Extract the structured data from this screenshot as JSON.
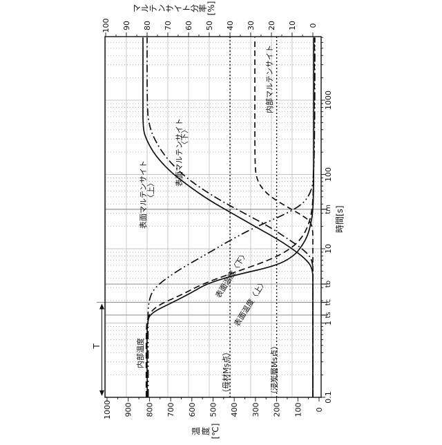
{
  "figure": {
    "background": "#ffffff",
    "ink": "#111111",
    "grid_major_color": "#b3b3b3",
    "grid_minor_color": "#9c9c9c",
    "special_line_color": "#7a7a7a",
    "title_top": "マルテンサイト分率[%]",
    "title_bottom": "温度[℃]",
    "title_right": "時間[s]"
  },
  "chart_data": {
    "type": "line",
    "rotated": "original landscape chart rotated 90deg counterclockwise; time axis points up, temperature axis along bottom (1000 left, 0 right), martensite fraction along top (100 left, 0 right)",
    "axes": {
      "time": {
        "label": "時間[s]",
        "scale": "log",
        "min": 0.1,
        "max": 7000,
        "decade_ticks": [
          {
            "t": 0.1,
            "label": "0.1"
          },
          {
            "t": 1,
            "label": "1"
          },
          {
            "t": 10,
            "label": "10"
          },
          {
            "t": 100,
            "label": "100"
          },
          {
            "t": 1000,
            "label": "1000"
          }
        ],
        "special_ticks": [
          {
            "t": 1.28,
            "label": "ts"
          },
          {
            "t": 1.9,
            "label": "tc"
          },
          {
            "t": 3.35,
            "label": "tb"
          },
          {
            "t": 34,
            "label": "tm"
          }
        ]
      },
      "temperature": {
        "label": "温度[℃]",
        "min": 0,
        "max": 1000,
        "ticks": [
          {
            "v": 1000,
            "label": "1000"
          },
          {
            "v": 900,
            "label": "900"
          },
          {
            "v": 800,
            "label": "800"
          },
          {
            "v": 700,
            "label": "700"
          },
          {
            "v": 600,
            "label": "600"
          },
          {
            "v": 500,
            "label": "500"
          },
          {
            "v": 400,
            "label": "400"
          },
          {
            "v": 300,
            "label": "300"
          },
          {
            "v": 200,
            "label": "200"
          },
          {
            "v": 100,
            "label": "100"
          },
          {
            "v": 0,
            "label": "0"
          }
        ]
      },
      "martensite": {
        "label": "マルテンサイト分率[%]",
        "min": 0,
        "max": 100,
        "ticks": [
          {
            "v": 100,
            "label": "100"
          },
          {
            "v": 90,
            "label": "90"
          },
          {
            "v": 80,
            "label": "80"
          },
          {
            "v": 70,
            "label": "70"
          },
          {
            "v": 60,
            "label": "60"
          },
          {
            "v": 50,
            "label": "50"
          },
          {
            "v": 40,
            "label": "40"
          },
          {
            "v": 30,
            "label": "30"
          },
          {
            "v": 20,
            "label": "20"
          },
          {
            "v": 10,
            "label": "10"
          },
          {
            "v": 0,
            "label": "0"
          }
        ]
      }
    },
    "reference_lines": [
      {
        "id": "base_ms",
        "label": "（母材Ms点）",
        "temperature": 420
      },
      {
        "id": "carb_ms",
        "label": "（浸炭層Ms点）",
        "temperature": 200
      }
    ],
    "series": [
      {
        "id": "surface_temp_lower",
        "label": "表面温度〈下〉",
        "label_lines": [
          "表面温度〈下〉"
        ],
        "axis": "temperature",
        "style": "solid",
        "points": [
          [
            0.1,
            810
          ],
          [
            0.5,
            812
          ],
          [
            1.0,
            810
          ],
          [
            1.35,
            797
          ],
          [
            1.9,
            690
          ],
          [
            2.6,
            598
          ],
          [
            3.4,
            528
          ],
          [
            4.4,
            400
          ],
          [
            5.9,
            202
          ],
          [
            8,
            118
          ],
          [
            11,
            80
          ],
          [
            15,
            54
          ],
          [
            22,
            38
          ],
          [
            34,
            28
          ],
          [
            100,
            25
          ],
          [
            1000,
            25
          ],
          [
            7000,
            25
          ]
        ]
      },
      {
        "id": "surface_temp_upper",
        "label": "表面温度〈上〉",
        "label_lines": [
          "表面温度〈上〉"
        ],
        "axis": "temperature",
        "style": "dashed",
        "points": [
          [
            0.1,
            815
          ],
          [
            0.6,
            816
          ],
          [
            1.2,
            812
          ],
          [
            1.7,
            768
          ],
          [
            2.4,
            648
          ],
          [
            3.3,
            556
          ],
          [
            4.6,
            420
          ],
          [
            7,
            235
          ],
          [
            10,
            132
          ],
          [
            15,
            72
          ],
          [
            25,
            40
          ],
          [
            50,
            26
          ],
          [
            1000,
            22
          ],
          [
            7000,
            22
          ]
        ]
      },
      {
        "id": "internal_temp",
        "label": "内部温度",
        "label_lines": [
          "内部温度"
        ],
        "axis": "temperature",
        "style": "dash-dot-dot",
        "points": [
          [
            0.1,
            806
          ],
          [
            1.0,
            807
          ],
          [
            1.9,
            806
          ],
          [
            3.0,
            779
          ],
          [
            5,
            672
          ],
          [
            8,
            546
          ],
          [
            13,
            420
          ],
          [
            19,
            310
          ],
          [
            27,
            185
          ],
          [
            38,
            85
          ],
          [
            55,
            40
          ],
          [
            90,
            24
          ],
          [
            1000,
            20
          ],
          [
            7000,
            20
          ]
        ]
      },
      {
        "id": "surface_mart_lower",
        "label": "表面マルテンサイト〈下〉",
        "label_lines": [
          "表面マルテンサイト",
          "〈下〉"
        ],
        "axis": "martensite",
        "style": "solid",
        "points": [
          [
            0.1,
            0
          ],
          [
            3,
            0
          ],
          [
            5.5,
            0
          ],
          [
            7.5,
            4
          ],
          [
            10,
            10
          ],
          [
            14,
            18
          ],
          [
            20,
            28
          ],
          [
            30,
            39
          ],
          [
            45,
            50
          ],
          [
            70,
            60
          ],
          [
            110,
            69
          ],
          [
            180,
            76
          ],
          [
            280,
            80
          ],
          [
            400,
            82
          ],
          [
            1000,
            82
          ],
          [
            7000,
            82
          ]
        ]
      },
      {
        "id": "surface_mart_upper",
        "label": "表面マルテンサイト〈上〉",
        "label_lines": [
          "表面マルテンサイト",
          "〈上〉"
        ],
        "axis": "martensite",
        "style": "dash-dot",
        "points": [
          [
            0.1,
            0
          ],
          [
            4,
            0
          ],
          [
            7,
            0
          ],
          [
            9.5,
            4
          ],
          [
            13,
            11
          ],
          [
            19,
            20
          ],
          [
            28,
            31
          ],
          [
            42,
            43
          ],
          [
            65,
            54
          ],
          [
            100,
            63
          ],
          [
            170,
            71
          ],
          [
            280,
            76
          ],
          [
            450,
            79
          ],
          [
            800,
            80
          ],
          [
            7000,
            80
          ]
        ]
      },
      {
        "id": "internal_mart",
        "label": "内部マルテンサイト",
        "label_lines": [
          "内部マルテンサイト"
        ],
        "axis": "martensite",
        "style": "long-dash",
        "points": [
          [
            0.1,
            0
          ],
          [
            10,
            0
          ],
          [
            22,
            0
          ],
          [
            28,
            5
          ],
          [
            36,
            12
          ],
          [
            47,
            19
          ],
          [
            62,
            24
          ],
          [
            85,
            27
          ],
          [
            130,
            28
          ],
          [
            1000,
            28
          ],
          [
            7000,
            28
          ]
        ]
      }
    ],
    "annotations": {
      "period": {
        "label": "T",
        "from_t": 0.1,
        "to_t": 1.9
      }
    }
  }
}
